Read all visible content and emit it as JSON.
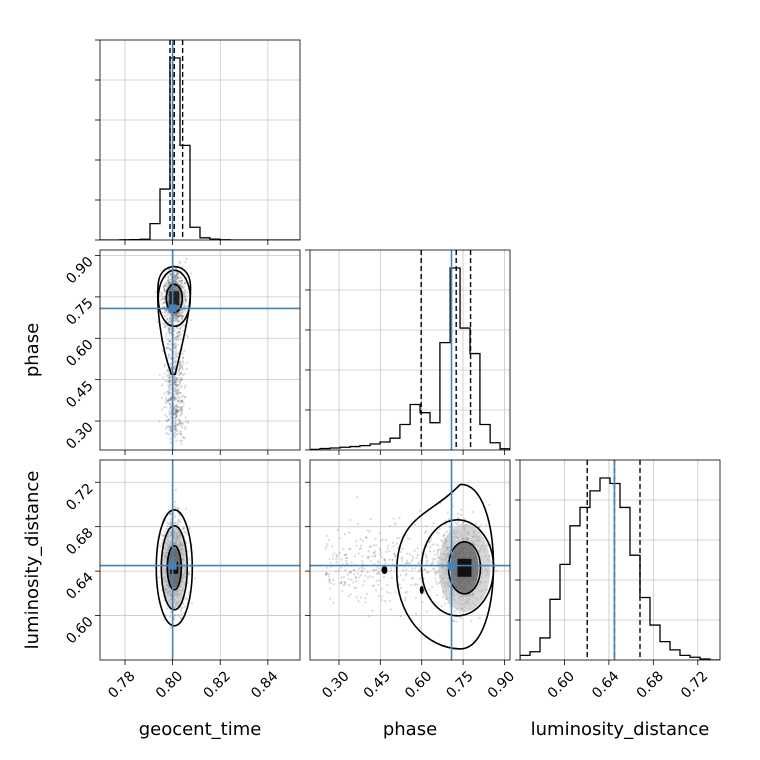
{
  "chart_data": {
    "type": "corner",
    "parameters": [
      "geocent_time",
      "phase",
      "luminosity_distance"
    ],
    "truths": {
      "geocent_time": 0.8,
      "phase": 0.708,
      "luminosity_distance": 0.645
    },
    "quantiles": {
      "geocent_time": [
        0.7989,
        0.8007,
        0.8042
      ],
      "phase": [
        0.598,
        0.725,
        0.777
      ],
      "luminosity_distance": [
        0.6205,
        0.645,
        0.668
      ]
    },
    "axes": {
      "geocent_time": {
        "range": [
          0.7695,
          0.8535
        ],
        "ticks": [
          0.78,
          0.8,
          0.82,
          0.84
        ],
        "tick_labels": [
          "0.78",
          "0.80",
          "0.82",
          "0.84"
        ]
      },
      "phase": {
        "range": [
          0.195,
          0.92
        ],
        "ticks": [
          0.3,
          0.45,
          0.6,
          0.75,
          0.9
        ],
        "tick_labels": [
          "0.30",
          "0.45",
          "0.60",
          "0.75",
          "0.90"
        ]
      },
      "luminosity_distance": {
        "range": [
          0.56,
          0.74
        ],
        "ticks": [
          0.6,
          0.64,
          0.68,
          0.72
        ],
        "tick_labels": [
          "0.60",
          "0.64",
          "0.68",
          "0.72"
        ]
      }
    },
    "histograms": {
      "geocent_time": {
        "edges": [
          0.7695,
          0.7737,
          0.7779,
          0.7821,
          0.7863,
          0.7905,
          0.7947,
          0.7989,
          0.8031,
          0.8073,
          0.8115,
          0.8157,
          0.8199,
          0.8241,
          0.8283,
          0.8325,
          0.8367,
          0.8409,
          0.8451,
          0.8493,
          0.8535
        ],
        "counts": [
          0,
          0,
          1,
          2,
          4,
          90,
          280,
          1000,
          520,
          70,
          12,
          5,
          1,
          0,
          0,
          0,
          0,
          0,
          0,
          0
        ]
      },
      "phase": {
        "edges": [
          0.195,
          0.231,
          0.268,
          0.304,
          0.34,
          0.376,
          0.413,
          0.449,
          0.485,
          0.521,
          0.558,
          0.594,
          0.63,
          0.666,
          0.703,
          0.739,
          0.775,
          0.811,
          0.848,
          0.884,
          0.92
        ],
        "counts": [
          3,
          8,
          11,
          15,
          19,
          24,
          33,
          44,
          65,
          140,
          250,
          205,
          150,
          590,
          1000,
          670,
          530,
          140,
          40,
          7
        ]
      },
      "luminosity_distance": {
        "edges": [
          0.56,
          0.569,
          0.578,
          0.587,
          0.596,
          0.605,
          0.614,
          0.623,
          0.632,
          0.641,
          0.65,
          0.659,
          0.668,
          0.677,
          0.686,
          0.695,
          0.704,
          0.713,
          0.722,
          0.731,
          0.74
        ],
        "counts": [
          25,
          45,
          120,
          330,
          520,
          730,
          830,
          920,
          990,
          960,
          830,
          570,
          340,
          190,
          100,
          55,
          25,
          15,
          5,
          0
        ]
      }
    },
    "axis_labels": {
      "x": [
        "geocent_time",
        "phase",
        "luminosity_distance"
      ],
      "y": [
        "",
        "phase",
        "luminosity_distance"
      ]
    },
    "colors": {
      "truth": "#4682b4",
      "contour": "#000000",
      "hist": "#000000",
      "grid": "#c8c8c8",
      "scatter": "#555555"
    }
  }
}
